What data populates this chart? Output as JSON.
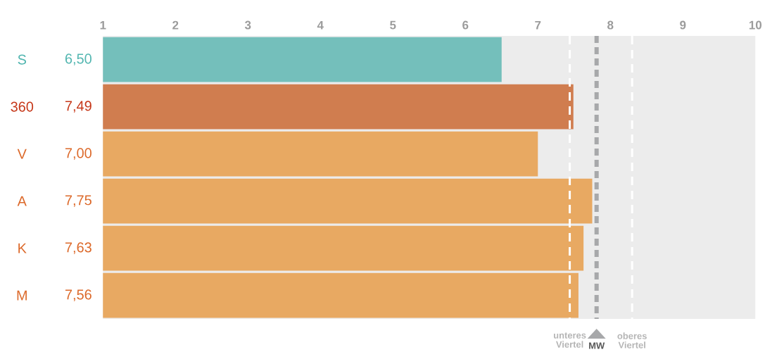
{
  "chart_data": {
    "type": "bar",
    "orientation": "horizontal",
    "categories": [
      "S",
      "360",
      "V",
      "A",
      "K",
      "M"
    ],
    "values": [
      6.5,
      7.49,
      7.0,
      7.75,
      7.63,
      7.56
    ],
    "value_labels": [
      "6,50",
      "7,49",
      "7,00",
      "7,75",
      "7,63",
      "7,56"
    ],
    "colors": [
      "#74bfbb",
      "#d07d4f",
      "#e8a962",
      "#e8a962",
      "#e8a962",
      "#e8a962"
    ],
    "xlim": [
      1,
      10
    ],
    "xticks": [
      1,
      2,
      3,
      4,
      5,
      6,
      7,
      8,
      9,
      10
    ],
    "ref_lines": [
      {
        "axis": "x",
        "value": 7.44,
        "label": "unteres Viertel",
        "color": "#ffffff",
        "line_style": "dashed"
      },
      {
        "axis": "x",
        "value": 7.81,
        "label": "MW",
        "color": "#a7a8aa",
        "line_style": "dashed"
      },
      {
        "axis": "x",
        "value": 8.3,
        "label": "oberes Viertel",
        "color": "#ffffff",
        "line_style": "dashed"
      }
    ]
  }
}
